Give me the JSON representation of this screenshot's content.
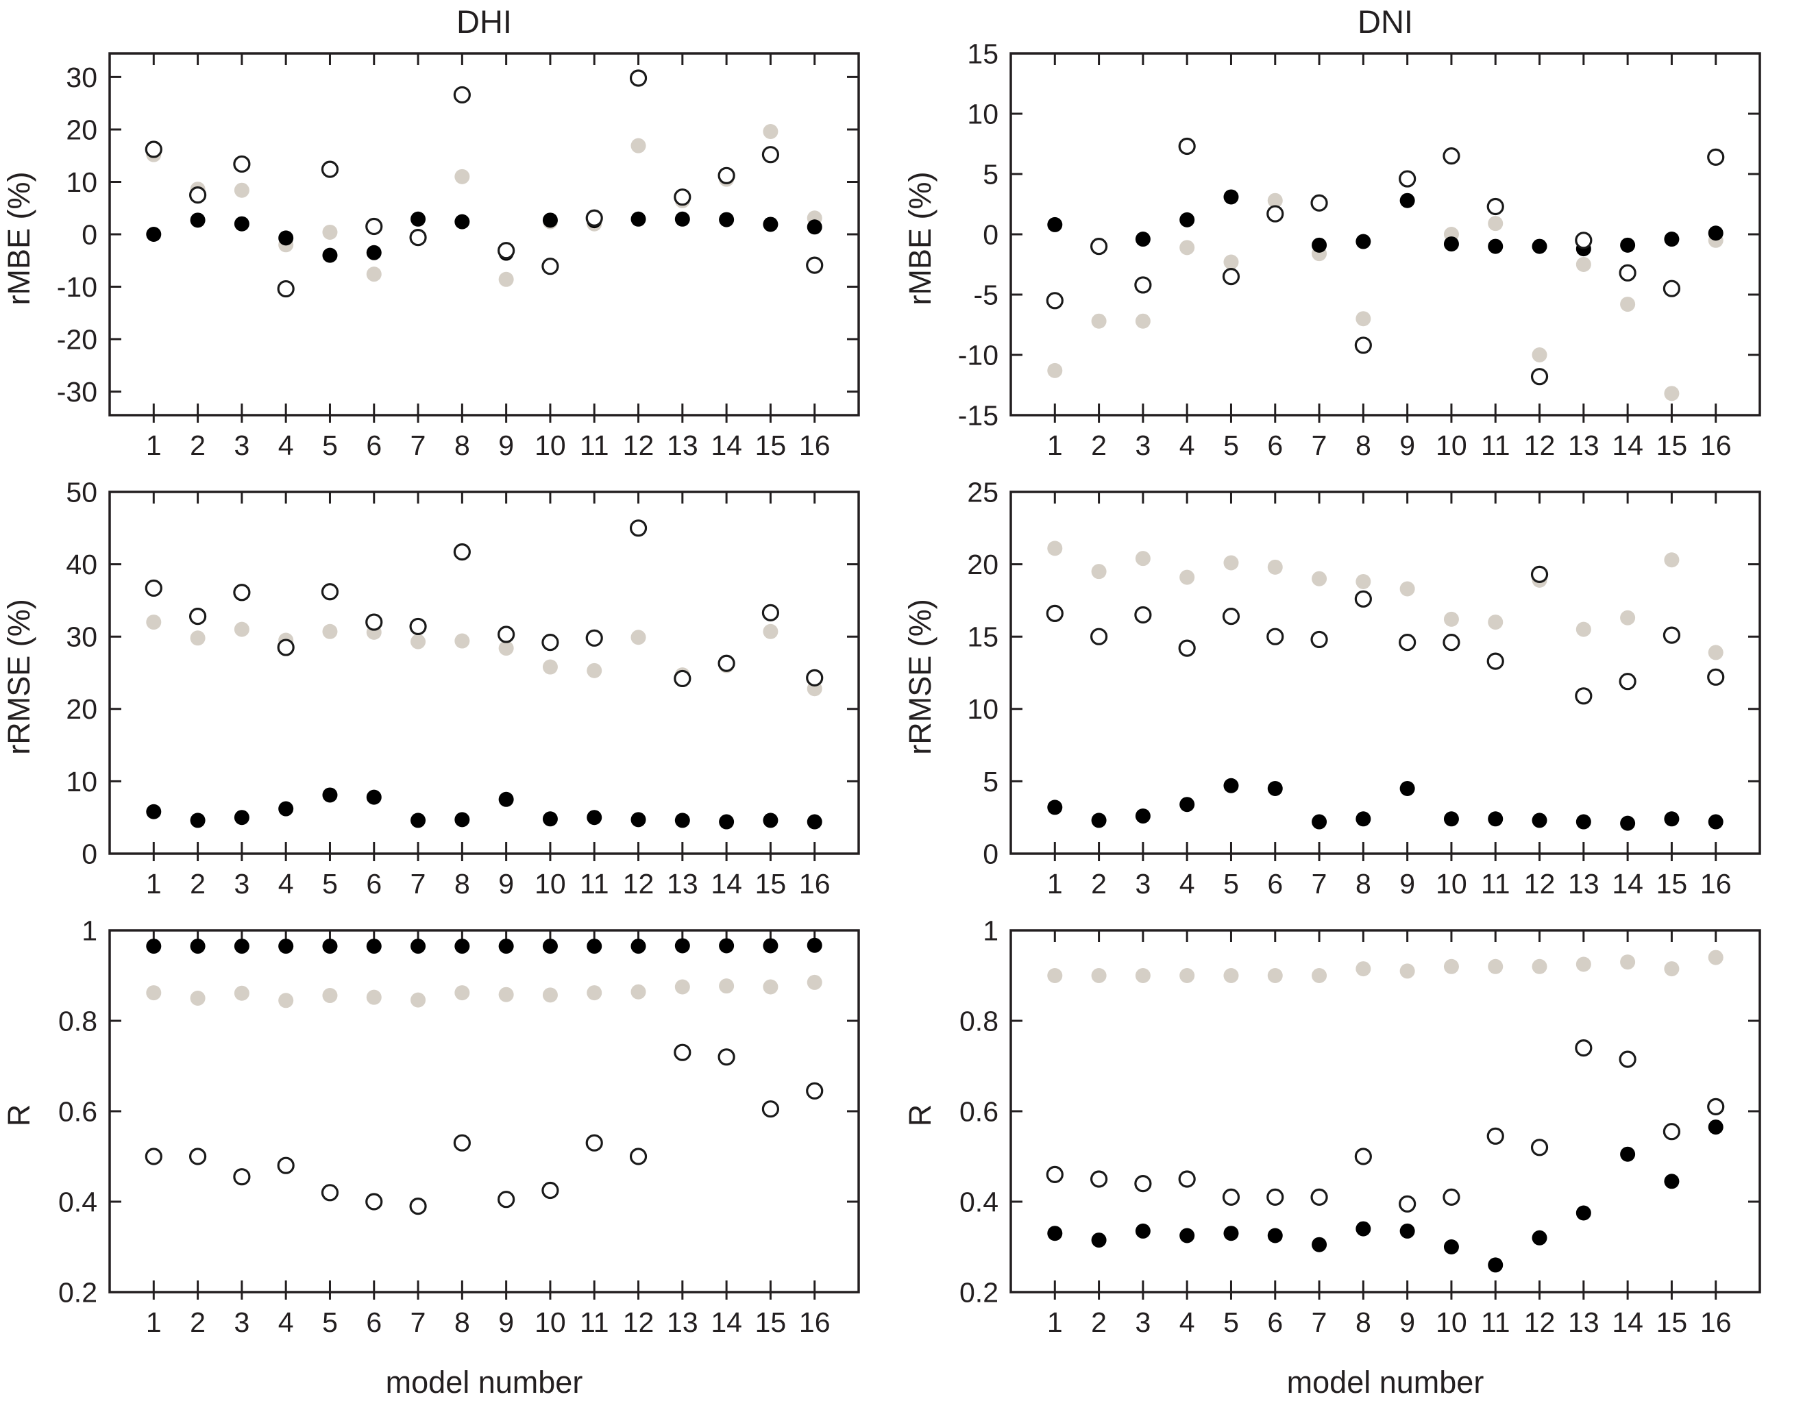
{
  "figure": {
    "background": "#ffffff",
    "x_axis_label": "model number"
  },
  "columns": [
    {
      "title": "DHI"
    },
    {
      "title": "DNI"
    }
  ],
  "colors": {
    "black_marker": "#000000",
    "gray_marker": "#d5cfc6",
    "open_fill": "#ffffff",
    "open_stroke": "#1a1a1a",
    "axis": "#231f20"
  },
  "chart_data": [
    {
      "id": "dhi-rmbe",
      "type": "scatter",
      "column": "DHI",
      "ylabel": "rMBE (%)",
      "xlabel": "",
      "xlim": [
        0,
        17
      ],
      "ylim": [
        -34.5,
        34.5
      ],
      "yticks": [
        -30,
        -20,
        -10,
        0,
        10,
        20,
        30
      ],
      "x": [
        1,
        2,
        3,
        4,
        5,
        6,
        7,
        8,
        9,
        10,
        11,
        12,
        13,
        14,
        15,
        16
      ],
      "series": [
        {
          "name": "gray-filled",
          "marker": "filled",
          "color_key": "gray_marker",
          "values": [
            15.2,
            8.6,
            8.4,
            -2.0,
            0.4,
            -7.6,
            -0.6,
            11.0,
            -8.6,
            2.4,
            2.0,
            16.9,
            6.4,
            10.5,
            19.6,
            3.1
          ]
        },
        {
          "name": "black-filled",
          "marker": "filled",
          "color_key": "black_marker",
          "values": [
            0.0,
            2.7,
            2.0,
            -0.7,
            -4.0,
            -3.5,
            2.9,
            2.4,
            -3.6,
            2.7,
            2.6,
            2.9,
            2.9,
            2.8,
            1.9,
            1.4
          ]
        },
        {
          "name": "open-circle",
          "marker": "open",
          "color_key": "open_stroke",
          "values": [
            16.2,
            7.5,
            13.4,
            -10.4,
            12.4,
            1.5,
            -0.6,
            26.6,
            -3.1,
            -6.1,
            3.1,
            29.8,
            7.1,
            11.2,
            15.2,
            -5.9
          ]
        }
      ]
    },
    {
      "id": "dni-rmbe",
      "type": "scatter",
      "column": "DNI",
      "ylabel": "rMBE (%)",
      "xlabel": "",
      "xlim": [
        0,
        17
      ],
      "ylim": [
        -15,
        15
      ],
      "yticks": [
        -15,
        -10,
        -5,
        0,
        5,
        10,
        15
      ],
      "x": [
        1,
        2,
        3,
        4,
        5,
        6,
        7,
        8,
        9,
        10,
        11,
        12,
        13,
        14,
        15,
        16
      ],
      "series": [
        {
          "name": "gray-filled",
          "marker": "filled",
          "color_key": "gray_marker",
          "values": [
            -11.3,
            -7.2,
            -7.2,
            -1.1,
            -2.3,
            2.8,
            -1.6,
            -7.0,
            4.6,
            0.0,
            0.9,
            -10.0,
            -2.5,
            -5.8,
            -13.2,
            -0.5
          ]
        },
        {
          "name": "black-filled",
          "marker": "filled",
          "color_key": "black_marker",
          "values": [
            0.8,
            -1.0,
            -0.4,
            1.2,
            3.1,
            1.7,
            -0.9,
            -0.6,
            2.8,
            -0.8,
            -1.0,
            -1.0,
            -1.2,
            -0.9,
            -0.4,
            0.1
          ]
        },
        {
          "name": "open-circle",
          "marker": "open",
          "color_key": "open_stroke",
          "values": [
            -5.5,
            -1.0,
            -4.2,
            7.3,
            -3.5,
            1.7,
            2.6,
            -9.2,
            4.6,
            6.5,
            2.3,
            -11.8,
            -0.5,
            -3.2,
            -4.5,
            6.4
          ]
        }
      ]
    },
    {
      "id": "dhi-rrmse",
      "type": "scatter",
      "column": "DHI",
      "ylabel": "rRMSE (%)",
      "xlabel": "",
      "xlim": [
        0,
        17
      ],
      "ylim": [
        0,
        50
      ],
      "yticks": [
        0,
        10,
        20,
        30,
        40,
        50
      ],
      "x": [
        1,
        2,
        3,
        4,
        5,
        6,
        7,
        8,
        9,
        10,
        11,
        12,
        13,
        14,
        15,
        16
      ],
      "series": [
        {
          "name": "gray-filled",
          "marker": "filled",
          "color_key": "gray_marker",
          "values": [
            32.0,
            29.8,
            31.0,
            29.5,
            30.7,
            30.6,
            29.3,
            29.4,
            28.4,
            25.8,
            25.3,
            29.9,
            24.7,
            26.0,
            30.7,
            22.8
          ]
        },
        {
          "name": "black-filled",
          "marker": "filled",
          "color_key": "black_marker",
          "values": [
            5.8,
            4.6,
            5.0,
            6.2,
            8.1,
            7.8,
            4.6,
            4.7,
            7.5,
            4.8,
            5.0,
            4.7,
            4.6,
            4.4,
            4.6,
            4.4
          ]
        },
        {
          "name": "open-circle",
          "marker": "open",
          "color_key": "open_stroke",
          "values": [
            36.7,
            32.8,
            36.1,
            28.5,
            36.2,
            32.0,
            31.4,
            41.7,
            30.3,
            29.2,
            29.8,
            45.0,
            24.2,
            26.3,
            33.3,
            24.3
          ]
        }
      ]
    },
    {
      "id": "dni-rrmse",
      "type": "scatter",
      "column": "DNI",
      "ylabel": "rRMSE (%)",
      "xlabel": "",
      "xlim": [
        0,
        17
      ],
      "ylim": [
        0,
        25
      ],
      "yticks": [
        0,
        5,
        10,
        15,
        20,
        25
      ],
      "x": [
        1,
        2,
        3,
        4,
        5,
        6,
        7,
        8,
        9,
        10,
        11,
        12,
        13,
        14,
        15,
        16
      ],
      "series": [
        {
          "name": "gray-filled",
          "marker": "filled",
          "color_key": "gray_marker",
          "values": [
            21.1,
            19.5,
            20.4,
            19.1,
            20.1,
            19.8,
            19.0,
            18.8,
            18.3,
            16.2,
            16.0,
            18.9,
            15.5,
            16.3,
            20.3,
            13.9
          ]
        },
        {
          "name": "black-filled",
          "marker": "filled",
          "color_key": "black_marker",
          "values": [
            3.2,
            2.3,
            2.6,
            3.4,
            4.7,
            4.5,
            2.2,
            2.4,
            4.5,
            2.4,
            2.4,
            2.3,
            2.2,
            2.1,
            2.4,
            2.2
          ]
        },
        {
          "name": "open-circle",
          "marker": "open",
          "color_key": "open_stroke",
          "values": [
            16.6,
            15.0,
            16.5,
            14.2,
            16.4,
            15.0,
            14.8,
            17.6,
            14.6,
            14.6,
            13.3,
            19.3,
            10.9,
            11.9,
            15.1,
            12.2
          ]
        }
      ]
    },
    {
      "id": "dhi-r",
      "type": "scatter",
      "column": "DHI",
      "ylabel": "R",
      "xlabel": "model number",
      "xlim": [
        0,
        17
      ],
      "ylim": [
        0.2,
        1.0
      ],
      "yticks": [
        0.2,
        0.4,
        0.6,
        0.8,
        1
      ],
      "x": [
        1,
        2,
        3,
        4,
        5,
        6,
        7,
        8,
        9,
        10,
        11,
        12,
        13,
        14,
        15,
        16
      ],
      "series": [
        {
          "name": "gray-filled",
          "marker": "filled",
          "color_key": "gray_marker",
          "values": [
            0.862,
            0.85,
            0.861,
            0.845,
            0.856,
            0.852,
            0.846,
            0.862,
            0.858,
            0.857,
            0.862,
            0.864,
            0.875,
            0.877,
            0.875,
            0.885
          ]
        },
        {
          "name": "black-filled",
          "marker": "filled",
          "color_key": "black_marker",
          "values": [
            0.965,
            0.965,
            0.965,
            0.965,
            0.965,
            0.965,
            0.965,
            0.965,
            0.965,
            0.965,
            0.965,
            0.965,
            0.966,
            0.966,
            0.966,
            0.967
          ]
        },
        {
          "name": "open-circle",
          "marker": "open",
          "color_key": "open_stroke",
          "values": [
            0.5,
            0.5,
            0.455,
            0.48,
            0.42,
            0.4,
            0.39,
            0.53,
            0.405,
            0.425,
            0.53,
            0.5,
            0.73,
            0.72,
            0.605,
            0.645
          ]
        }
      ]
    },
    {
      "id": "dni-r",
      "type": "scatter",
      "column": "DNI",
      "ylabel": "R",
      "xlabel": "model number",
      "xlim": [
        0,
        17
      ],
      "ylim": [
        0.2,
        1.0
      ],
      "yticks": [
        0.2,
        0.4,
        0.6,
        0.8,
        1
      ],
      "x": [
        1,
        2,
        3,
        4,
        5,
        6,
        7,
        8,
        9,
        10,
        11,
        12,
        13,
        14,
        15,
        16
      ],
      "series": [
        {
          "name": "gray-filled",
          "marker": "filled",
          "color_key": "gray_marker",
          "values": [
            0.9,
            0.9,
            0.9,
            0.9,
            0.9,
            0.9,
            0.9,
            0.915,
            0.91,
            0.92,
            0.92,
            0.92,
            0.925,
            0.93,
            0.915,
            0.94
          ]
        },
        {
          "name": "black-filled",
          "marker": "filled",
          "color_key": "black_marker",
          "values": [
            0.33,
            0.315,
            0.335,
            0.325,
            0.33,
            0.325,
            0.305,
            0.34,
            0.335,
            0.3,
            0.26,
            0.32,
            0.375,
            0.505,
            0.445,
            0.565
          ]
        },
        {
          "name": "open-circle",
          "marker": "open",
          "color_key": "open_stroke",
          "values": [
            0.46,
            0.45,
            0.44,
            0.45,
            0.41,
            0.41,
            0.41,
            0.5,
            0.395,
            0.41,
            0.545,
            0.52,
            0.74,
            0.715,
            0.555,
            0.61
          ]
        }
      ]
    }
  ]
}
